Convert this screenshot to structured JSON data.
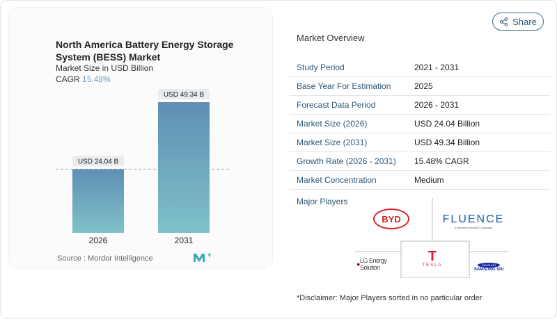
{
  "header": {
    "share_label": "Share"
  },
  "chart_card": {
    "title": "North America Battery Energy Storage System (BESS) Market",
    "subtitle": "Market Size in USD Billion",
    "cagr_label": "CAGR",
    "cagr_value": "15.48%",
    "source": "Source :  Mordor Intelligence",
    "logo_text": "MI"
  },
  "chart_data": {
    "type": "bar",
    "categories": [
      "2026",
      "2031"
    ],
    "values": [
      24.04,
      49.34
    ],
    "data_labels": [
      "USD 24.04 B",
      "USD 49.34 B"
    ],
    "title": "North America Battery Energy Storage System (BESS) Market",
    "ylabel": "Market Size in USD Billion",
    "ylim": [
      0,
      49.34
    ],
    "grid": false,
    "colors": {
      "top": "#5f8fb4",
      "bottom": "#7fc1c9"
    }
  },
  "overview": {
    "title": "Market Overview",
    "rows": [
      {
        "label": "Study Period",
        "value": "2021 - 2031"
      },
      {
        "label": "Base Year For Estimation",
        "value": "2025"
      },
      {
        "label": "Forecast Data Period",
        "value": "2026 - 2031"
      },
      {
        "label": "Market Size (2026)",
        "value": "USD 24.04 Billion"
      },
      {
        "label": "Market Size (2031)",
        "value": "USD 49.34 Billion"
      },
      {
        "label": "Growth Rate (2026 - 2031)",
        "value": "15.48% CAGR"
      },
      {
        "label": "Market Concentration",
        "value": "Medium"
      }
    ]
  },
  "players": {
    "title": "Major Players",
    "list": [
      {
        "name": "BYD"
      },
      {
        "name": "FLUENCE",
        "tagline": "A Siemens and AES Company"
      },
      {
        "name": "LG Energy Solution"
      },
      {
        "name": "TESLA"
      },
      {
        "name": "SAMSUNG",
        "tagline": "SAMSUNG SDI"
      }
    ],
    "disclaimer": "*Disclaimer: Major Players sorted in no particular order"
  }
}
